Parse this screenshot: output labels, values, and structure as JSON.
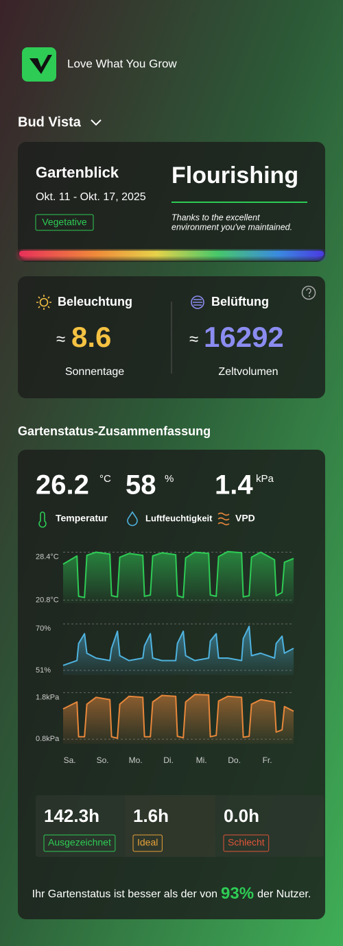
{
  "header": {
    "title": "Love What You Grow"
  },
  "garden": {
    "name": "Bud Vista"
  },
  "overview": {
    "title": "Gartenblick",
    "date_range": "Okt. 11 - Okt. 17, 2025",
    "stage": "Vegetative",
    "status": "Flourishing",
    "message_lines": [
      "Thanks to the excellent",
      "environment you've maintained."
    ]
  },
  "metrics": [
    {
      "title": "Beleuchtung",
      "approx": "≈",
      "value": "8.6",
      "label": "Sonnentage"
    },
    {
      "title": "Belüftung",
      "approx": "≈",
      "value": "16292",
      "label": "Zeltvolumen"
    }
  ],
  "summary": {
    "title": "Gartenstatus-Zusammenfassung",
    "readings": [
      {
        "value": "26.2",
        "unit": "°C",
        "label": "Temperatur"
      },
      {
        "value": "58",
        "unit": "%",
        "label": "Luftfeuchtigkeit"
      },
      {
        "value": "1.4",
        "unit": "kPa",
        "label": "VPD"
      }
    ],
    "hours": [
      {
        "value": "142.3h",
        "label": "Ausgezeichnet",
        "color": "#2ecc55"
      },
      {
        "value": "1.6h",
        "label": "Ideal",
        "color": "#e8a23a"
      },
      {
        "value": "0.0h",
        "label": "Schlecht",
        "color": "#e0553a"
      }
    ],
    "footer": {
      "prefix": "Ihr Gartenstatus ist besser als der von",
      "percent": "93%",
      "suffix": "der Nutzer."
    }
  },
  "chart_data": [
    {
      "type": "line",
      "color": "#2ecc55",
      "xlim": [
        -0.2,
        6.8
      ],
      "x": [
        -0.2,
        0.22,
        0.27,
        0.45,
        0.52,
        0.8,
        1.22,
        1.27,
        1.45,
        1.52,
        1.8,
        2.22,
        2.27,
        2.45,
        2.52,
        2.8,
        3.22,
        3.27,
        3.45,
        3.52,
        3.8,
        4.22,
        4.27,
        4.45,
        4.52,
        4.8,
        5.22,
        5.27,
        5.45,
        5.52,
        5.8,
        6.22,
        6.27,
        6.45,
        6.52,
        6.8
      ],
      "values": [
        26.5,
        27.8,
        21.4,
        21.2,
        27.9,
        28.4,
        28.1,
        21.5,
        21.3,
        27.6,
        28.2,
        27.9,
        21.4,
        21.6,
        27.8,
        28.3,
        28.0,
        21.5,
        21.2,
        27.5,
        28.4,
        28.2,
        21.6,
        21.4,
        27.7,
        28.5,
        28.3,
        21.3,
        21.5,
        27.6,
        28.4,
        27.2,
        21.5,
        22.0,
        26.8,
        27.4
      ],
      "ylim": [
        20.3,
        29.0
      ],
      "yticks": [
        {
          "value": 28.4,
          "label": "28.4°C"
        },
        {
          "value": 20.8,
          "label": "20.8°C"
        }
      ]
    },
    {
      "type": "line",
      "color": "#4fb3e0",
      "xlim": [
        -0.2,
        6.8
      ],
      "x": [
        -0.2,
        0.22,
        0.27,
        0.45,
        0.52,
        0.8,
        1.22,
        1.27,
        1.45,
        1.52,
        1.8,
        2.22,
        2.27,
        2.45,
        2.52,
        2.8,
        3.22,
        3.27,
        3.45,
        3.52,
        3.8,
        4.22,
        4.27,
        4.45,
        4.52,
        4.8,
        5.22,
        5.27,
        5.45,
        5.52,
        5.8,
        6.22,
        6.27,
        6.45,
        6.52,
        6.8
      ],
      "values": [
        53,
        55,
        62,
        66,
        58,
        56,
        55,
        60,
        67,
        57,
        55,
        56,
        61,
        66,
        56,
        55,
        55,
        62,
        67,
        57,
        55,
        56,
        63,
        66,
        56,
        56,
        55,
        64,
        69,
        57,
        58,
        56,
        62,
        65,
        58,
        60
      ],
      "ylim": [
        49,
        72
      ],
      "yticks": [
        {
          "value": 70,
          "label": "70%"
        },
        {
          "value": 51,
          "label": "51%"
        }
      ]
    },
    {
      "type": "line",
      "color": "#e8873a",
      "xlim": [
        -0.2,
        6.8
      ],
      "x": [
        -0.2,
        0.22,
        0.27,
        0.45,
        0.52,
        0.8,
        1.22,
        1.27,
        1.45,
        1.52,
        1.8,
        2.22,
        2.27,
        2.45,
        2.52,
        2.8,
        3.22,
        3.27,
        3.45,
        3.52,
        3.8,
        4.22,
        4.27,
        4.45,
        4.52,
        4.8,
        5.22,
        5.27,
        5.45,
        5.52,
        5.8,
        6.22,
        6.27,
        6.45,
        6.52,
        6.8
      ],
      "values": [
        1.45,
        1.6,
        0.85,
        0.85,
        1.55,
        1.7,
        1.65,
        0.85,
        0.82,
        1.55,
        1.72,
        1.7,
        0.85,
        0.85,
        1.6,
        1.74,
        1.72,
        0.86,
        0.83,
        1.6,
        1.76,
        1.75,
        0.85,
        0.88,
        1.62,
        1.72,
        1.7,
        0.84,
        0.86,
        1.55,
        1.65,
        1.6,
        0.95,
        1.0,
        1.5,
        1.4
      ],
      "ylim": [
        0.7,
        1.85
      ],
      "yticks": [
        {
          "value": 1.8,
          "label": "1.8kPa"
        },
        {
          "value": 0.8,
          "label": "0.8kPa"
        }
      ],
      "xticks": [
        {
          "value": 0,
          "label": "Sa."
        },
        {
          "value": 1,
          "label": "So."
        },
        {
          "value": 2,
          "label": "Mo."
        },
        {
          "value": 3,
          "label": "Di."
        },
        {
          "value": 4,
          "label": "Mi."
        },
        {
          "value": 5,
          "label": "Do."
        },
        {
          "value": 6,
          "label": "Fr."
        }
      ]
    }
  ]
}
